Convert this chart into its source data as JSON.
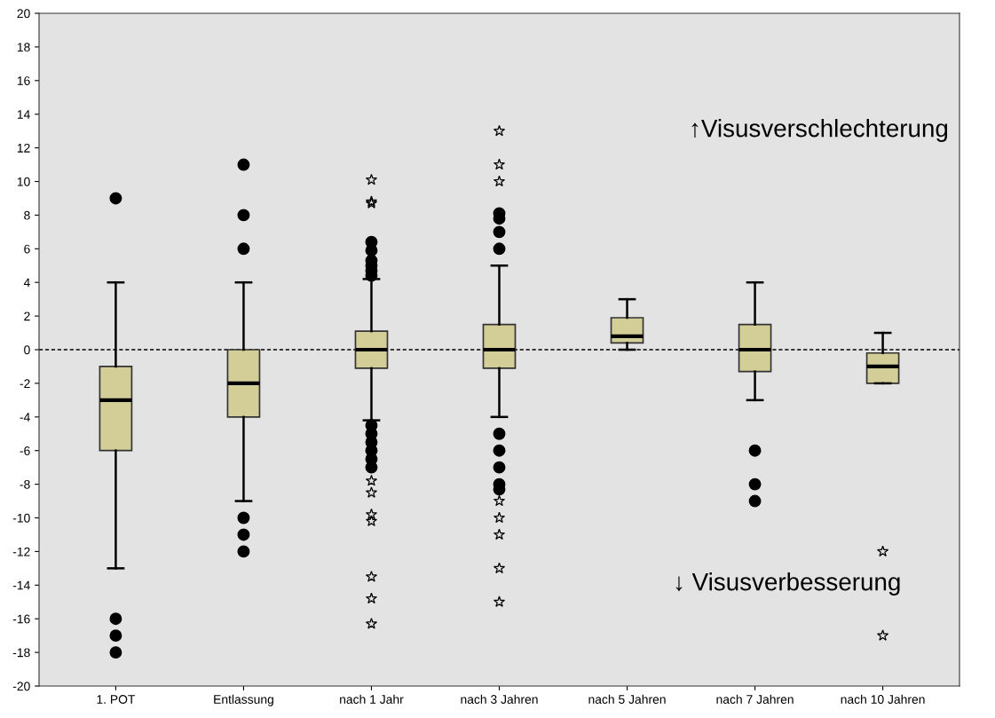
{
  "chart_data": {
    "type": "box",
    "categories": [
      "1. POT",
      "Entlassung",
      "nach 1 Jahr",
      "nach 3 Jahren",
      "nach 5 Jahren",
      "nach 7 Jahren",
      "nach 10 Jahren"
    ],
    "boxes": [
      {
        "low": -13,
        "q1": -6,
        "median": -3,
        "q3": -1,
        "high": 4,
        "outliers": [
          9,
          -16,
          -17,
          -18
        ]
      },
      {
        "low": -9,
        "q1": -4,
        "median": -2,
        "q3": 0,
        "high": 4,
        "outliers": [
          11,
          8,
          6,
          -10,
          -11,
          -12
        ]
      },
      {
        "low": -4.2,
        "q1": -1.1,
        "median": 0,
        "q3": 1.1,
        "high": 4.2,
        "outliers": [
          10.1,
          8.8,
          8.7,
          6.4,
          5.9,
          5.3,
          5.0,
          4.7,
          4.4,
          -4.5,
          -5.0,
          -5.5,
          -6.0,
          -6.5,
          -7.0,
          -7.8,
          -8.5,
          -9.8,
          -10.2,
          -13.5,
          -14.8,
          -16.3
        ]
      },
      {
        "low": -4,
        "q1": -1.1,
        "median": 0,
        "q3": 1.5,
        "high": 5,
        "outliers": [
          13,
          11,
          10,
          8.1,
          7.8,
          7,
          6,
          -5,
          -6,
          -7,
          -8,
          -8.3,
          -9,
          -10,
          -11,
          -13,
          -15
        ]
      },
      {
        "low": 0,
        "q1": 0.4,
        "median": 0.8,
        "q3": 1.9,
        "high": 3
      },
      {
        "low": -3,
        "q1": -1.3,
        "median": 0,
        "q3": 1.5,
        "high": 4,
        "outliers": [
          -6,
          -8,
          -9
        ]
      },
      {
        "low": -2,
        "q1": -2,
        "median": -1,
        "q3": -0.2,
        "high": 1,
        "outliers": [
          -12,
          -17
        ]
      }
    ],
    "color": "#d3ce97",
    "ylim": [
      -20,
      20
    ],
    "yticks": [
      -20,
      -18,
      -16,
      -14,
      -12,
      -10,
      -8,
      -6,
      -4,
      -2,
      0,
      2,
      4,
      6,
      8,
      10,
      12,
      14,
      16,
      18,
      20
    ],
    "grid": false,
    "ref_lines": [
      {
        "axis": "y",
        "value": 0,
        "color": "#000000",
        "line_style": "dashed"
      }
    ],
    "annotations": [
      "↑Visusverschlechterung",
      "↓ Visusverbesserung"
    ]
  }
}
